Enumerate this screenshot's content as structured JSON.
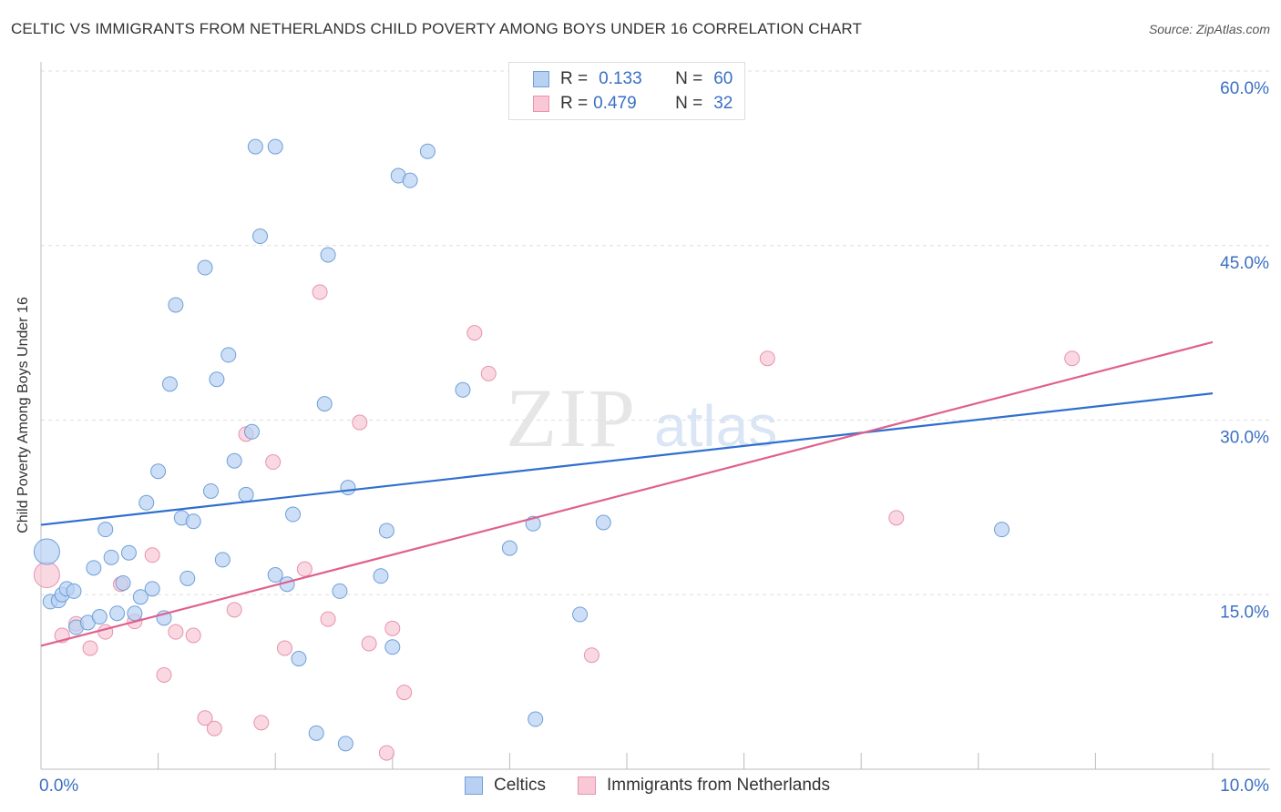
{
  "title": "CELTIC VS IMMIGRANTS FROM NETHERLANDS CHILD POVERTY AMONG BOYS UNDER 16 CORRELATION CHART",
  "source": "Source: ZipAtlas.com",
  "watermark": {
    "zip": "ZIP",
    "atlas": "atlas"
  },
  "legend": {
    "r_label": "R =",
    "n_label": "N =",
    "rows": [
      {
        "r": "0.133",
        "n": "60"
      },
      {
        "r": "0.479",
        "n": "32"
      }
    ]
  },
  "colors": {
    "celtics_fill": "#b8d1f2",
    "celtics_stroke": "#6f9fd8",
    "celtics_line": "#2f6fce",
    "neth_fill": "#f8c8d6",
    "neth_stroke": "#e893ae",
    "neth_line": "#e0608e",
    "tick_text": "#3a6fc4",
    "grid": "#dddddd"
  },
  "chart_data": {
    "type": "scatter",
    "title": "CELTIC VS IMMIGRANTS FROM NETHERLANDS CHILD POVERTY AMONG BOYS UNDER 16 CORRELATION CHART",
    "xlabel": "",
    "ylabel": "Child Poverty Among Boys Under 16",
    "xlim": [
      0,
      10
    ],
    "ylim": [
      0,
      60
    ],
    "x_tick_labels": [
      "0.0%",
      "10.0%"
    ],
    "y_ticks": [
      15,
      30,
      45,
      60
    ],
    "y_tick_labels": [
      "15.0%",
      "30.0%",
      "45.0%",
      "60.0%"
    ],
    "legend_position": "top-center",
    "series": [
      {
        "name": "Celtics",
        "r": 0.133,
        "n": 60,
        "trend": {
          "x": [
            0,
            10
          ],
          "y": [
            21.0,
            32.3
          ]
        },
        "points": [
          {
            "x": 0.05,
            "y": 18.7,
            "big": true
          },
          {
            "x": 0.08,
            "y": 14.4
          },
          {
            "x": 0.15,
            "y": 14.5
          },
          {
            "x": 0.18,
            "y": 15.0
          },
          {
            "x": 0.22,
            "y": 15.5
          },
          {
            "x": 0.28,
            "y": 15.3
          },
          {
            "x": 0.3,
            "y": 12.2
          },
          {
            "x": 0.4,
            "y": 12.6
          },
          {
            "x": 0.45,
            "y": 17.3
          },
          {
            "x": 0.5,
            "y": 13.1
          },
          {
            "x": 0.55,
            "y": 20.6
          },
          {
            "x": 0.6,
            "y": 18.2
          },
          {
            "x": 0.65,
            "y": 13.4
          },
          {
            "x": 0.7,
            "y": 16.0
          },
          {
            "x": 0.75,
            "y": 18.6
          },
          {
            "x": 0.8,
            "y": 13.4
          },
          {
            "x": 0.85,
            "y": 14.8
          },
          {
            "x": 0.9,
            "y": 22.9
          },
          {
            "x": 0.95,
            "y": 15.5
          },
          {
            "x": 1.0,
            "y": 25.6
          },
          {
            "x": 1.05,
            "y": 13.0
          },
          {
            "x": 1.1,
            "y": 33.1
          },
          {
            "x": 1.15,
            "y": 39.9
          },
          {
            "x": 1.2,
            "y": 21.6
          },
          {
            "x": 1.25,
            "y": 16.4
          },
          {
            "x": 1.3,
            "y": 21.3
          },
          {
            "x": 1.4,
            "y": 43.1
          },
          {
            "x": 1.45,
            "y": 23.9
          },
          {
            "x": 1.5,
            "y": 33.5
          },
          {
            "x": 1.55,
            "y": 18.0
          },
          {
            "x": 1.6,
            "y": 35.6
          },
          {
            "x": 1.65,
            "y": 26.5
          },
          {
            "x": 1.75,
            "y": 23.6
          },
          {
            "x": 1.8,
            "y": 29.0
          },
          {
            "x": 1.83,
            "y": 53.5
          },
          {
            "x": 1.87,
            "y": 45.8
          },
          {
            "x": 2.0,
            "y": 53.5
          },
          {
            "x": 2.0,
            "y": 16.7
          },
          {
            "x": 2.1,
            "y": 15.9
          },
          {
            "x": 2.15,
            "y": 21.9
          },
          {
            "x": 2.2,
            "y": 9.5
          },
          {
            "x": 2.35,
            "y": 3.1
          },
          {
            "x": 2.42,
            "y": 31.4
          },
          {
            "x": 2.45,
            "y": 44.2
          },
          {
            "x": 2.55,
            "y": 15.3
          },
          {
            "x": 2.6,
            "y": 2.2
          },
          {
            "x": 2.62,
            "y": 24.2
          },
          {
            "x": 2.9,
            "y": 16.6
          },
          {
            "x": 2.95,
            "y": 20.5
          },
          {
            "x": 3.0,
            "y": 10.5
          },
          {
            "x": 3.05,
            "y": 51.0
          },
          {
            "x": 3.15,
            "y": 50.6
          },
          {
            "x": 3.3,
            "y": 53.1
          },
          {
            "x": 3.6,
            "y": 32.6
          },
          {
            "x": 4.0,
            "y": 19.0
          },
          {
            "x": 4.2,
            "y": 21.1
          },
          {
            "x": 4.22,
            "y": 4.3
          },
          {
            "x": 4.6,
            "y": 13.3
          },
          {
            "x": 4.8,
            "y": 21.2
          },
          {
            "x": 8.2,
            "y": 20.6
          }
        ]
      },
      {
        "name": "Immigrants from Netherlands",
        "r": 0.479,
        "n": 32,
        "trend": {
          "x": [
            0,
            10
          ],
          "y": [
            10.6,
            36.7
          ]
        },
        "points": [
          {
            "x": 0.05,
            "y": 16.7,
            "big": true
          },
          {
            "x": 0.18,
            "y": 11.5
          },
          {
            "x": 0.3,
            "y": 12.5
          },
          {
            "x": 0.42,
            "y": 10.4
          },
          {
            "x": 0.55,
            "y": 11.8
          },
          {
            "x": 0.68,
            "y": 15.9
          },
          {
            "x": 0.8,
            "y": 12.7
          },
          {
            "x": 0.95,
            "y": 18.4
          },
          {
            "x": 1.05,
            "y": 8.1
          },
          {
            "x": 1.15,
            "y": 11.8
          },
          {
            "x": 1.3,
            "y": 11.5
          },
          {
            "x": 1.4,
            "y": 4.4
          },
          {
            "x": 1.48,
            "y": 3.5
          },
          {
            "x": 1.65,
            "y": 13.7
          },
          {
            "x": 1.75,
            "y": 28.8
          },
          {
            "x": 1.88,
            "y": 4.0
          },
          {
            "x": 1.98,
            "y": 26.4
          },
          {
            "x": 2.08,
            "y": 10.4
          },
          {
            "x": 2.25,
            "y": 17.2
          },
          {
            "x": 2.38,
            "y": 41.0
          },
          {
            "x": 2.45,
            "y": 12.9
          },
          {
            "x": 2.72,
            "y": 29.8
          },
          {
            "x": 2.8,
            "y": 10.8
          },
          {
            "x": 2.95,
            "y": 1.4
          },
          {
            "x": 3.0,
            "y": 12.1
          },
          {
            "x": 3.1,
            "y": 6.6
          },
          {
            "x": 3.7,
            "y": 37.5
          },
          {
            "x": 3.82,
            "y": 34.0
          },
          {
            "x": 4.7,
            "y": 9.8
          },
          {
            "x": 6.2,
            "y": 35.3
          },
          {
            "x": 7.3,
            "y": 21.6
          },
          {
            "x": 8.8,
            "y": 35.3
          }
        ]
      }
    ]
  }
}
